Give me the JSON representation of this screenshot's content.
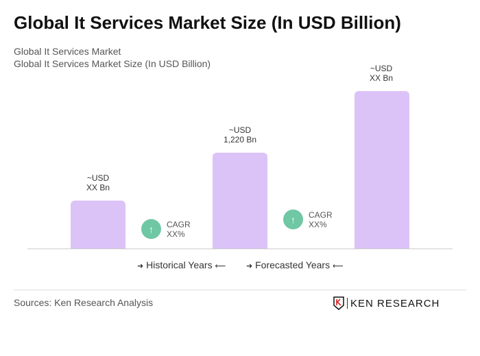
{
  "title": "Global It Services Market Size (In USD Billion)",
  "subtitle1": "Global It Services Market",
  "subtitle2": "Global It Services Market Size (In USD Billion)",
  "chart_data": {
    "type": "bar",
    "categories": [
      "",
      "",
      ""
    ],
    "values": [
      null,
      1220,
      null
    ],
    "data_labels": [
      [
        "~USD",
        "XX Bn"
      ],
      [
        "~USD",
        "1,220 Bn"
      ],
      [
        "~USD",
        "XX Bn"
      ]
    ],
    "bar_color": "#dcc3f7",
    "cagr": [
      {
        "label": "CAGR",
        "value": "XX%"
      },
      {
        "label": "CAGR",
        "value": "XX%"
      }
    ],
    "cagr_color": "#6fc7a3",
    "legend": {
      "historical": "Historical Years",
      "forecasted": "Forecasted Years"
    }
  },
  "sources": "Sources: Ken Research Analysis",
  "logo": "KEN RESEARCH"
}
